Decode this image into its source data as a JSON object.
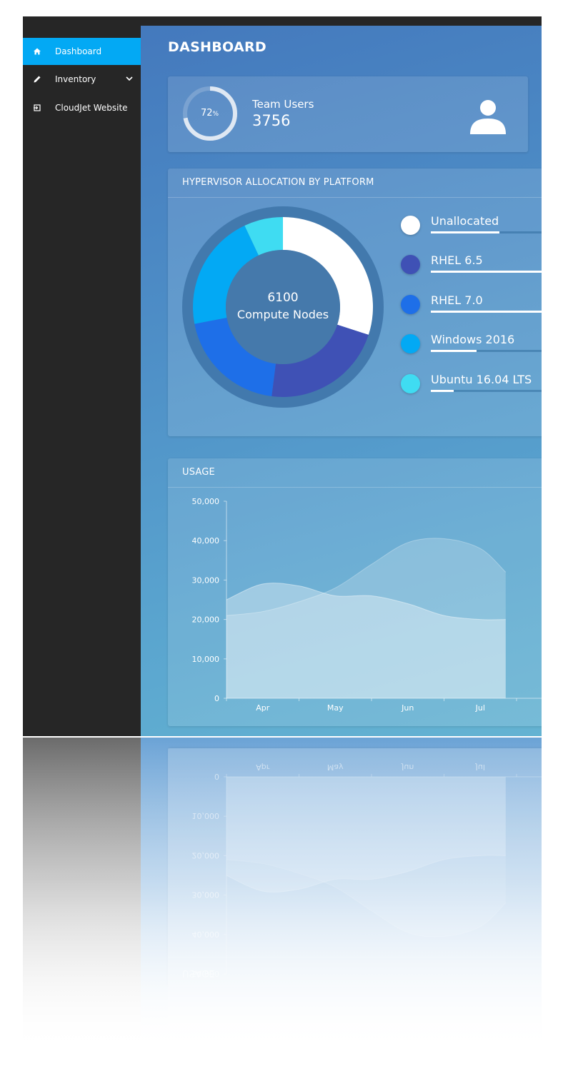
{
  "app": {
    "title": "DASHBOARD",
    "accent_color": "#03a9f4",
    "sidebar_color": "#262626"
  },
  "sidebar": {
    "items": [
      {
        "label": "Dashboard",
        "icon": "home-icon",
        "active": true
      },
      {
        "label": "Inventory",
        "icon": "pencil-icon",
        "active": false,
        "has_submenu": true
      },
      {
        "label": "CloudJet Website",
        "icon": "sign-in-icon",
        "active": false
      }
    ]
  },
  "team_users": {
    "percent_value": "72",
    "percent_sign": "%",
    "progress": 0.72,
    "label": "Team Users",
    "count": "3756",
    "icon": "user-icon"
  },
  "hypervisor": {
    "title": "HYPERVISOR ALLOCATION BY PLATFORM",
    "center_value": "6100",
    "center_label": "Compute Nodes",
    "platforms": [
      {
        "label": "Unallocated",
        "color": "#ffffff",
        "share": 0.3,
        "bar": 0.48
      },
      {
        "label": "RHEL 6.5",
        "color": "#3f51b5",
        "share": 0.22,
        "bar": 1.0
      },
      {
        "label": "RHEL 7.0",
        "color": "#1e6fe8",
        "share": 0.2,
        "bar": 1.0
      },
      {
        "label": "Windows 2016",
        "color": "#03a9f4",
        "share": 0.21,
        "bar": 0.32
      },
      {
        "label": "Ubuntu 16.04 LTS",
        "color": "#3fdcf2",
        "share": 0.07,
        "bar": 0.16
      }
    ]
  },
  "usage": {
    "title": "USAGE"
  },
  "chart_data": {
    "type": "area",
    "title": "USAGE",
    "x_ticks": [
      "Apr",
      "May",
      "Jun",
      "Jul"
    ],
    "y_ticks": [
      "0",
      "10,000",
      "20,000",
      "30,000",
      "40,000",
      "50,000"
    ],
    "ylim": [
      0,
      50000
    ],
    "x": [
      0,
      0.5,
      1,
      1.5,
      2,
      2.5,
      3,
      3.5,
      3.85
    ],
    "series": [
      {
        "values": [
          21000,
          22000,
          24500,
          28000,
          34000,
          39500,
          40500,
          38000,
          32000
        ]
      },
      {
        "values": [
          25000,
          29000,
          28500,
          26000,
          26000,
          24000,
          21000,
          20000,
          20000
        ]
      }
    ],
    "grid": false
  }
}
